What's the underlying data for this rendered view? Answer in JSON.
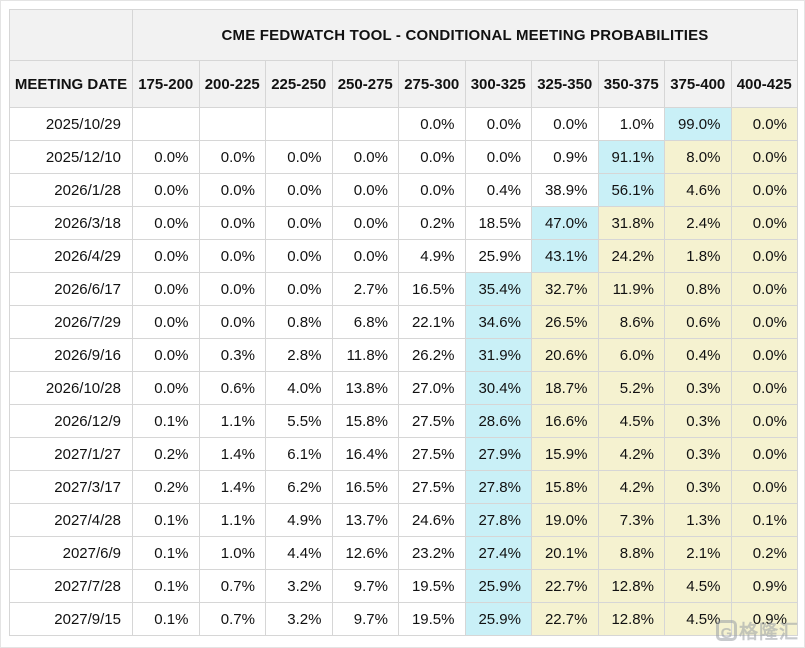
{
  "chart_data": {
    "type": "table",
    "title": "CME FEDWATCH TOOL - CONDITIONAL MEETING PROBABILITIES",
    "columns": [
      "MEETING DATE",
      "175-200",
      "200-225",
      "225-250",
      "250-275",
      "275-300",
      "300-325",
      "325-350",
      "350-375",
      "375-400",
      "400-425"
    ],
    "rows": [
      {
        "date": "2025/10/29",
        "values": [
          "",
          "",
          "",
          "",
          "0.0%",
          "0.0%",
          "0.0%",
          "1.0%",
          "99.0%",
          "0.0%"
        ],
        "highlight_col": 8
      },
      {
        "date": "2025/12/10",
        "values": [
          "0.0%",
          "0.0%",
          "0.0%",
          "0.0%",
          "0.0%",
          "0.0%",
          "0.9%",
          "91.1%",
          "8.0%",
          "0.0%"
        ],
        "highlight_col": 7
      },
      {
        "date": "2026/1/28",
        "values": [
          "0.0%",
          "0.0%",
          "0.0%",
          "0.0%",
          "0.0%",
          "0.4%",
          "38.9%",
          "56.1%",
          "4.6%",
          "0.0%"
        ],
        "highlight_col": 7
      },
      {
        "date": "2026/3/18",
        "values": [
          "0.0%",
          "0.0%",
          "0.0%",
          "0.0%",
          "0.2%",
          "18.5%",
          "47.0%",
          "31.8%",
          "2.4%",
          "0.0%"
        ],
        "highlight_col": 6
      },
      {
        "date": "2026/4/29",
        "values": [
          "0.0%",
          "0.0%",
          "0.0%",
          "0.0%",
          "4.9%",
          "25.9%",
          "43.1%",
          "24.2%",
          "1.8%",
          "0.0%"
        ],
        "highlight_col": 6
      },
      {
        "date": "2026/6/17",
        "values": [
          "0.0%",
          "0.0%",
          "0.0%",
          "2.7%",
          "16.5%",
          "35.4%",
          "32.7%",
          "11.9%",
          "0.8%",
          "0.0%"
        ],
        "highlight_col": 5
      },
      {
        "date": "2026/7/29",
        "values": [
          "0.0%",
          "0.0%",
          "0.8%",
          "6.8%",
          "22.1%",
          "34.6%",
          "26.5%",
          "8.6%",
          "0.6%",
          "0.0%"
        ],
        "highlight_col": 5
      },
      {
        "date": "2026/9/16",
        "values": [
          "0.0%",
          "0.3%",
          "2.8%",
          "11.8%",
          "26.2%",
          "31.9%",
          "20.6%",
          "6.0%",
          "0.4%",
          "0.0%"
        ],
        "highlight_col": 5
      },
      {
        "date": "2026/10/28",
        "values": [
          "0.0%",
          "0.6%",
          "4.0%",
          "13.8%",
          "27.0%",
          "30.4%",
          "18.7%",
          "5.2%",
          "0.3%",
          "0.0%"
        ],
        "highlight_col": 5
      },
      {
        "date": "2026/12/9",
        "values": [
          "0.1%",
          "1.1%",
          "5.5%",
          "15.8%",
          "27.5%",
          "28.6%",
          "16.6%",
          "4.5%",
          "0.3%",
          "0.0%"
        ],
        "highlight_col": 5
      },
      {
        "date": "2027/1/27",
        "values": [
          "0.2%",
          "1.4%",
          "6.1%",
          "16.4%",
          "27.5%",
          "27.9%",
          "15.9%",
          "4.2%",
          "0.3%",
          "0.0%"
        ],
        "highlight_col": 5
      },
      {
        "date": "2027/3/17",
        "values": [
          "0.2%",
          "1.4%",
          "6.2%",
          "16.5%",
          "27.5%",
          "27.8%",
          "15.8%",
          "4.2%",
          "0.3%",
          "0.0%"
        ],
        "highlight_col": 5
      },
      {
        "date": "2027/4/28",
        "values": [
          "0.1%",
          "1.1%",
          "4.9%",
          "13.7%",
          "24.6%",
          "27.8%",
          "19.0%",
          "7.3%",
          "1.3%",
          "0.1%"
        ],
        "highlight_col": 5
      },
      {
        "date": "2027/6/9",
        "values": [
          "0.1%",
          "1.0%",
          "4.4%",
          "12.6%",
          "23.2%",
          "27.4%",
          "20.1%",
          "8.8%",
          "2.1%",
          "0.2%"
        ],
        "highlight_col": 5
      },
      {
        "date": "2027/7/28",
        "values": [
          "0.1%",
          "0.7%",
          "3.2%",
          "9.7%",
          "19.5%",
          "25.9%",
          "22.7%",
          "12.8%",
          "4.5%",
          "0.9%"
        ],
        "highlight_col": 5
      },
      {
        "date": "2027/9/15",
        "values": [
          "0.1%",
          "0.7%",
          "3.2%",
          "9.7%",
          "19.5%",
          "25.9%",
          "22.7%",
          "12.8%",
          "4.5%",
          "0.9%"
        ],
        "highlight_col": 5
      }
    ],
    "layout_hints": {
      "highlight_rule": "cyan = highest-probability rate bin in row; yellow = bins to the right of it",
      "grid": true
    }
  },
  "colors": {
    "header_bg": "#f2f2f2",
    "highlight_cyan": "#c9f0f7",
    "trailing_yellow": "#f5f2d0",
    "grid_line": "#d6d6d6",
    "text": "#111111"
  },
  "watermark": {
    "logo_letter": "G",
    "text": "格隆汇"
  }
}
